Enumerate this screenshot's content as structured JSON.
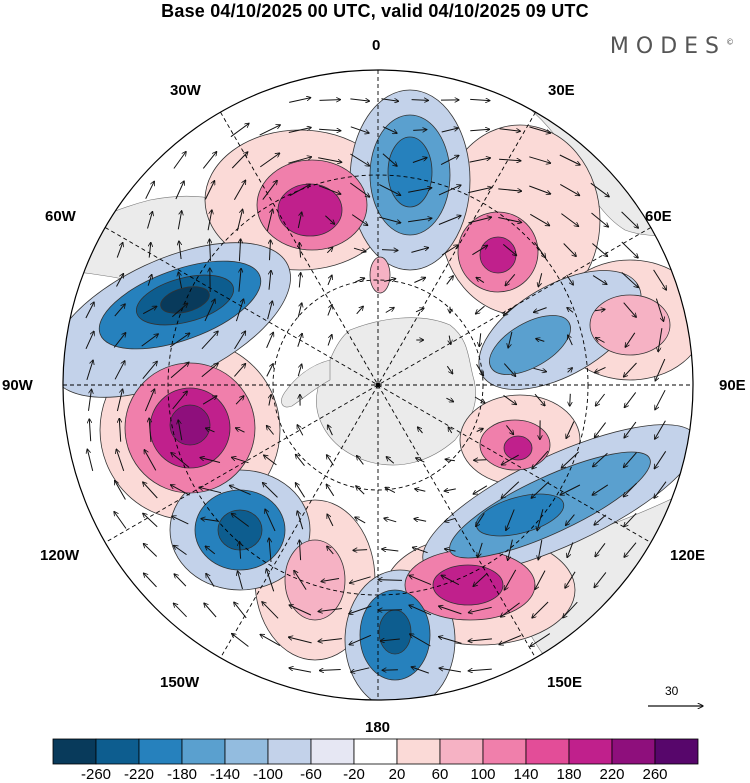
{
  "header": {
    "title": "Base 04/10/2025 00 UTC, valid 04/10/2025 09 UTC",
    "brand": "MODES",
    "brand_mark": "©"
  },
  "map": {
    "projection": "south polar stereographic",
    "longitude_labels": [
      "0",
      "30E",
      "60E",
      "90E",
      "120E",
      "150E",
      "180",
      "150W",
      "120W",
      "90W",
      "60W",
      "30W"
    ],
    "reference_vector_value": "30",
    "colors": {
      "land": "#ebebeb",
      "graticule": "#000000"
    }
  },
  "colorbar": {
    "labels": [
      "-260",
      "-220",
      "-180",
      "-140",
      "-100",
      "-60",
      "-20",
      "20",
      "60",
      "100",
      "140",
      "180",
      "220",
      "260"
    ],
    "colors": [
      "#083a5b",
      "#0d5d8f",
      "#2681bd",
      "#5aa0cf",
      "#93bcdf",
      "#c3d2ea",
      "#e6e7f3",
      "#ffffff",
      "#fbdad7",
      "#f6b2c4",
      "#f07fab",
      "#e34d98",
      "#c0208c",
      "#8e0f7c",
      "#57066b"
    ]
  }
}
